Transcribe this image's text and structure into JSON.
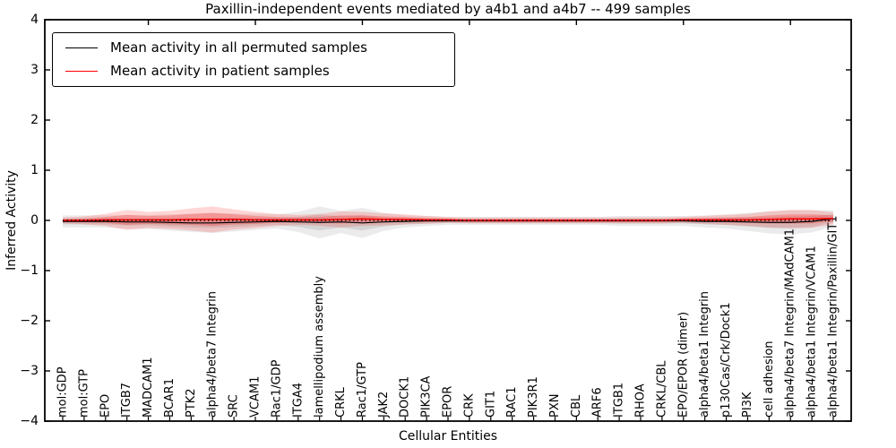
{
  "chart_data": {
    "type": "line",
    "title": "Paxillin-independent events mediated by a4b1 and a4b7 -- 499 samples",
    "xlabel": "Cellular Entities",
    "ylabel": "Inferred Activity",
    "ylim": [
      -4,
      4
    ],
    "yticks": [
      -4,
      -3,
      -2,
      -1,
      0,
      1,
      2,
      3,
      4
    ],
    "ytick_labels": [
      "−4",
      "−3",
      "−2",
      "−1",
      "0",
      "1",
      "2",
      "3",
      "4"
    ],
    "x_major_tick_indices": [
      4,
      9,
      14,
      19,
      24,
      29,
      34
    ],
    "grid": false,
    "legend_position": "upper left",
    "zero_line": {
      "y": 0,
      "style": "dotted",
      "color": "#000000"
    },
    "categories": [
      "mol:GDP",
      "mol:GTP",
      "EPO",
      "ITGB7",
      "MADCAM1",
      "BCAR1",
      "PTK2",
      "alpha4/beta7 Integrin",
      "SRC",
      "VCAM1",
      "Rac1/GDP",
      "ITGA4",
      "lamellipodium assembly",
      "CRKL",
      "Rac1/GTP",
      "JAK2",
      "DOCK1",
      "PIK3CA",
      "EPOR",
      "CRK",
      "GIT1",
      "RAC1",
      "PIK3R1",
      "PXN",
      "CBL",
      "ARF6",
      "ITGB1",
      "RHOA",
      "CRKL/CBL",
      "EPO/EPOR (dimer)",
      "alpha4/beta1 Integrin",
      "p130Cas/Crk/Dock1",
      "PI3K",
      "cell adhesion",
      "alpha4/beta7 Integrin/MAdCAM1",
      "alpha4/beta1 Integrin/VCAM1",
      "alpha4/beta1 Integrin/Paxillin/GIT1"
    ],
    "series": [
      {
        "name": "Mean activity in all permuted samples",
        "color": "#000000",
        "band_color": "#000000",
        "band_alphas": [
          0.08,
          0.09
        ],
        "line_width": 1.2,
        "mean": [
          -0.02,
          -0.02,
          -0.02,
          -0.03,
          -0.03,
          -0.04,
          -0.05,
          -0.05,
          -0.04,
          -0.03,
          -0.02,
          -0.03,
          -0.04,
          -0.03,
          -0.05,
          -0.03,
          -0.02,
          -0.01,
          -0.01,
          -0.01,
          -0.01,
          -0.01,
          -0.01,
          -0.01,
          -0.01,
          -0.01,
          -0.01,
          -0.01,
          -0.01,
          -0.01,
          -0.02,
          -0.02,
          -0.03,
          -0.04,
          -0.04,
          -0.02,
          0.04
        ],
        "std": [
          0.06,
          0.06,
          0.06,
          0.07,
          0.07,
          0.08,
          0.09,
          0.1,
          0.09,
          0.08,
          0.07,
          0.1,
          0.16,
          0.11,
          0.15,
          0.09,
          0.06,
          0.05,
          0.04,
          0.04,
          0.04,
          0.04,
          0.04,
          0.04,
          0.04,
          0.04,
          0.05,
          0.05,
          0.05,
          0.05,
          0.06,
          0.07,
          0.09,
          0.11,
          0.12,
          0.11,
          0.08
        ]
      },
      {
        "name": "Mean activity in patient samples",
        "color": "#ff0000",
        "band_color": "#ff0000",
        "band_alphas": [
          0.16,
          0.24
        ],
        "line_width": 1.6,
        "mean": [
          0.0,
          0.0,
          0.01,
          0.01,
          0.01,
          0.01,
          0.02,
          0.02,
          0.02,
          0.01,
          0.01,
          0.01,
          0.01,
          0.02,
          0.03,
          0.02,
          0.02,
          0.01,
          0.01,
          0.0,
          0.0,
          0.0,
          0.0,
          0.0,
          0.0,
          0.0,
          0.0,
          0.0,
          0.0,
          0.01,
          0.01,
          0.01,
          0.01,
          0.02,
          0.03,
          0.03,
          0.04
        ],
        "std": [
          0.03,
          0.04,
          0.06,
          0.1,
          0.08,
          0.09,
          0.11,
          0.13,
          0.1,
          0.08,
          0.06,
          0.05,
          0.06,
          0.08,
          0.07,
          0.06,
          0.05,
          0.04,
          0.03,
          0.03,
          0.03,
          0.03,
          0.03,
          0.03,
          0.03,
          0.03,
          0.03,
          0.03,
          0.03,
          0.03,
          0.04,
          0.05,
          0.06,
          0.08,
          0.09,
          0.09,
          0.06
        ]
      }
    ]
  }
}
